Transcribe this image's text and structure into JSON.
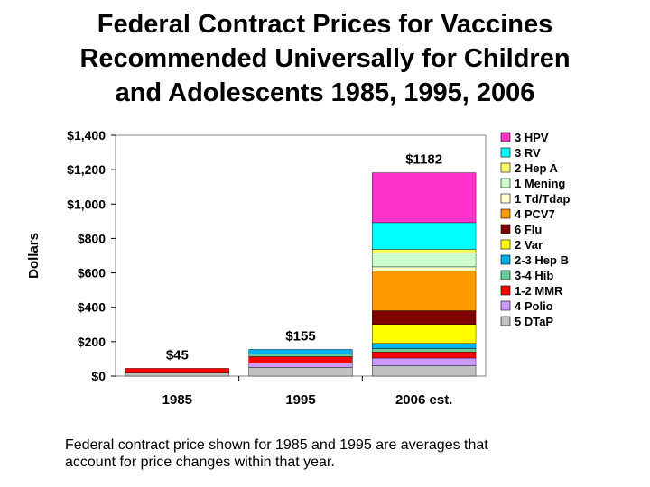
{
  "title_lines": [
    "Federal Contract Prices for Vaccines",
    "Recommended Universally for Children",
    "and Adolescents 1985, 1995, 2006"
  ],
  "footnote_lines": [
    "Federal contract price shown for 1985 and 1995 are averages that",
    "account for price changes within that year."
  ],
  "chart_data": {
    "type": "bar",
    "stacked": true,
    "title": "Federal Contract Prices for Vaccines Recommended Universally for Children and Adolescents 1985, 1995, 2006",
    "xlabel": "",
    "ylabel": "Dollars",
    "ylim": [
      0,
      1400
    ],
    "yticks": [
      0,
      200,
      400,
      600,
      800,
      1000,
      1200,
      1400
    ],
    "ytick_labels": [
      "$0",
      "$200",
      "$400",
      "$600",
      "$800",
      "$1,000",
      "$1,200",
      "$1,400"
    ],
    "categories": [
      "1985",
      "1995",
      "2006 est."
    ],
    "totals": [
      45,
      155,
      1182
    ],
    "total_labels": [
      "$45",
      "$155",
      "$1182"
    ],
    "grid": false,
    "legend_position": "right",
    "series": [
      {
        "name": "5 DTaP",
        "color": "#c0c0c0",
        "values": [
          18,
          50,
          60
        ]
      },
      {
        "name": "4 Polio",
        "color": "#cc99ff",
        "values": [
          0,
          25,
          45
        ]
      },
      {
        "name": "1-2 MMR",
        "color": "#ff0000",
        "values": [
          27,
          38,
          35
        ]
      },
      {
        "name": "3-4 Hib",
        "color": "#66cc99",
        "values": [
          0,
          14,
          20
        ]
      },
      {
        "name": "2-3 Hep B",
        "color": "#00b0f0",
        "values": [
          0,
          28,
          30
        ]
      },
      {
        "name": "2 Var",
        "color": "#ffff00",
        "values": [
          0,
          0,
          110
        ]
      },
      {
        "name": "6 Flu",
        "color": "#800000",
        "values": [
          0,
          0,
          80
        ]
      },
      {
        "name": "4 PCV7",
        "color": "#ff9900",
        "values": [
          0,
          0,
          230
        ]
      },
      {
        "name": "1 Td/Tdap",
        "color": "#ffffcc",
        "values": [
          0,
          0,
          25
        ]
      },
      {
        "name": "1 Mening",
        "color": "#ccffcc",
        "values": [
          0,
          0,
          82
        ]
      },
      {
        "name": "2 Hep A",
        "color": "#ffff66",
        "values": [
          0,
          0,
          20
        ]
      },
      {
        "name": "3 RV",
        "color": "#00ffff",
        "values": [
          0,
          0,
          155
        ]
      },
      {
        "name": "3 HPV",
        "color": "#ff33cc",
        "values": [
          0,
          0,
          290
        ]
      }
    ]
  }
}
